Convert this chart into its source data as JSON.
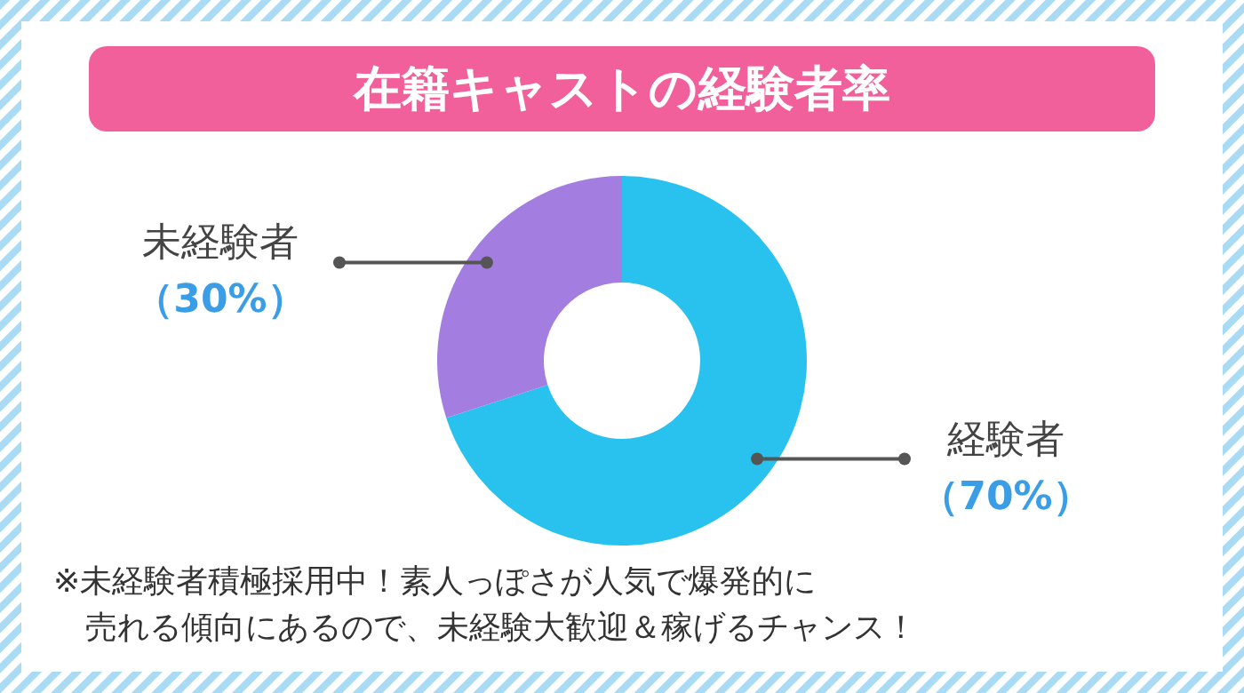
{
  "chart_data": {
    "type": "donut",
    "title": "在籍キャストの経験者率",
    "categories": [
      "経験者",
      "未経験者"
    ],
    "values": [
      70,
      30
    ],
    "value_labels": [
      "（70%）",
      "（30%）"
    ],
    "colors": [
      "#29c1ee",
      "#a47de0"
    ],
    "annotations": [
      "※未経験者積極採用中！素人っぽさが人気で爆発的に",
      "売れる傾向にあるので、未経験大歓迎＆稼げるチャンス！"
    ]
  }
}
